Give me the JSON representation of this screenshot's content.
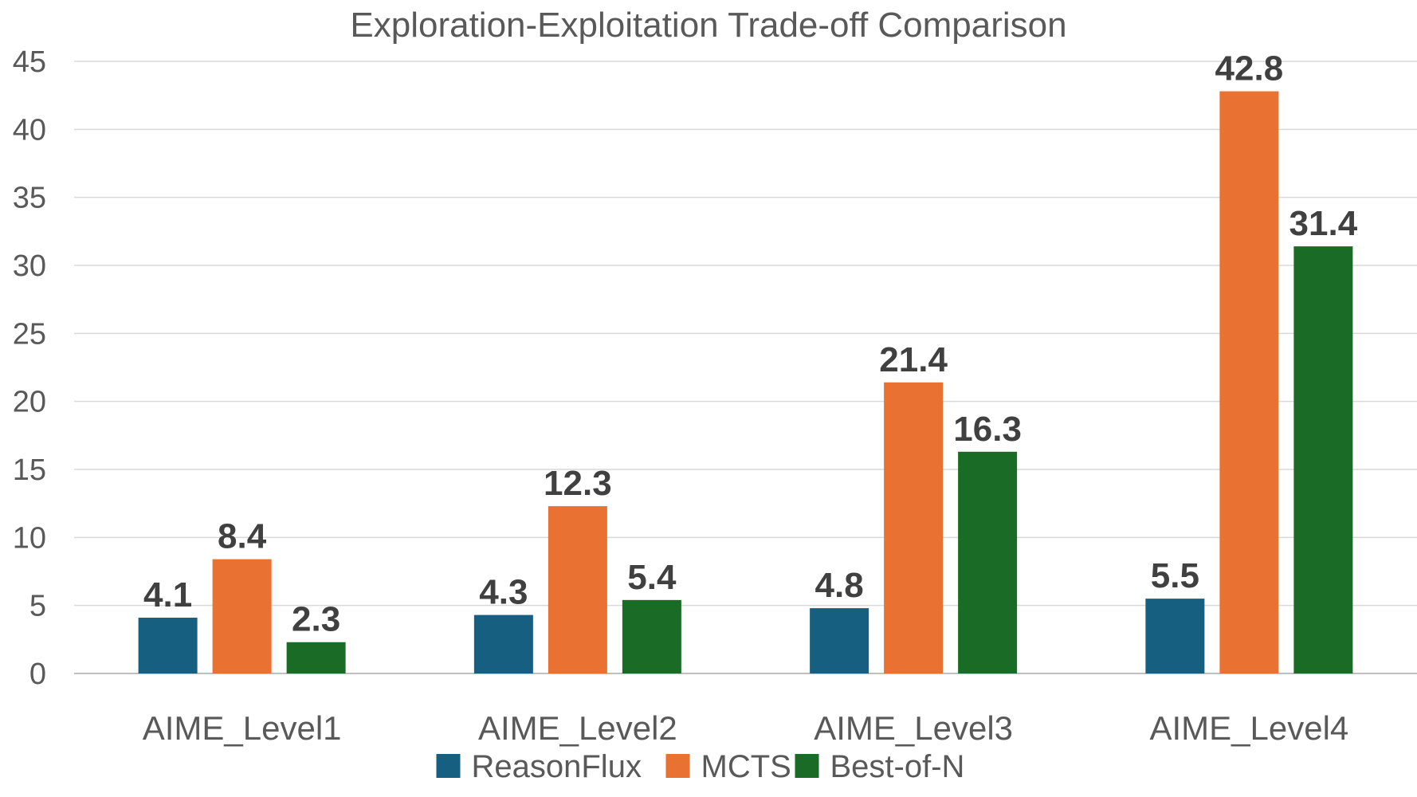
{
  "chart_data": {
    "type": "bar",
    "title": "Exploration-Exploitation Trade-off Comparison",
    "categories": [
      "AIME_Level1",
      "AIME_Level2",
      "AIME_Level3",
      "AIME_Level4"
    ],
    "series": [
      {
        "name": "ReasonFlux",
        "color": "#175f80",
        "values": [
          4.1,
          4.3,
          4.8,
          5.5
        ],
        "labels": [
          "4.1",
          "4.3",
          "4.8",
          "5.5"
        ]
      },
      {
        "name": "MCTS",
        "color": "#e97132",
        "values": [
          8.4,
          12.3,
          21.4,
          42.8
        ],
        "labels": [
          "8.4",
          "12.3",
          "21.4",
          "42.8"
        ]
      },
      {
        "name": "Best-of-N",
        "color": "#1a6b25",
        "values": [
          2.3,
          5.4,
          16.3,
          31.4
        ],
        "labels": [
          "2.3",
          "5.4",
          "16.3",
          "31.4"
        ]
      }
    ],
    "ylim": [
      0,
      45
    ],
    "yticks": [
      0,
      5,
      10,
      15,
      20,
      25,
      30,
      35,
      40,
      45
    ],
    "ytick_labels": [
      "0",
      "5",
      "10",
      "15",
      "20",
      "25",
      "30",
      "35",
      "40",
      "45"
    ],
    "grid": true,
    "legend_position": "bottom-center",
    "xlabel": "",
    "ylabel": ""
  }
}
